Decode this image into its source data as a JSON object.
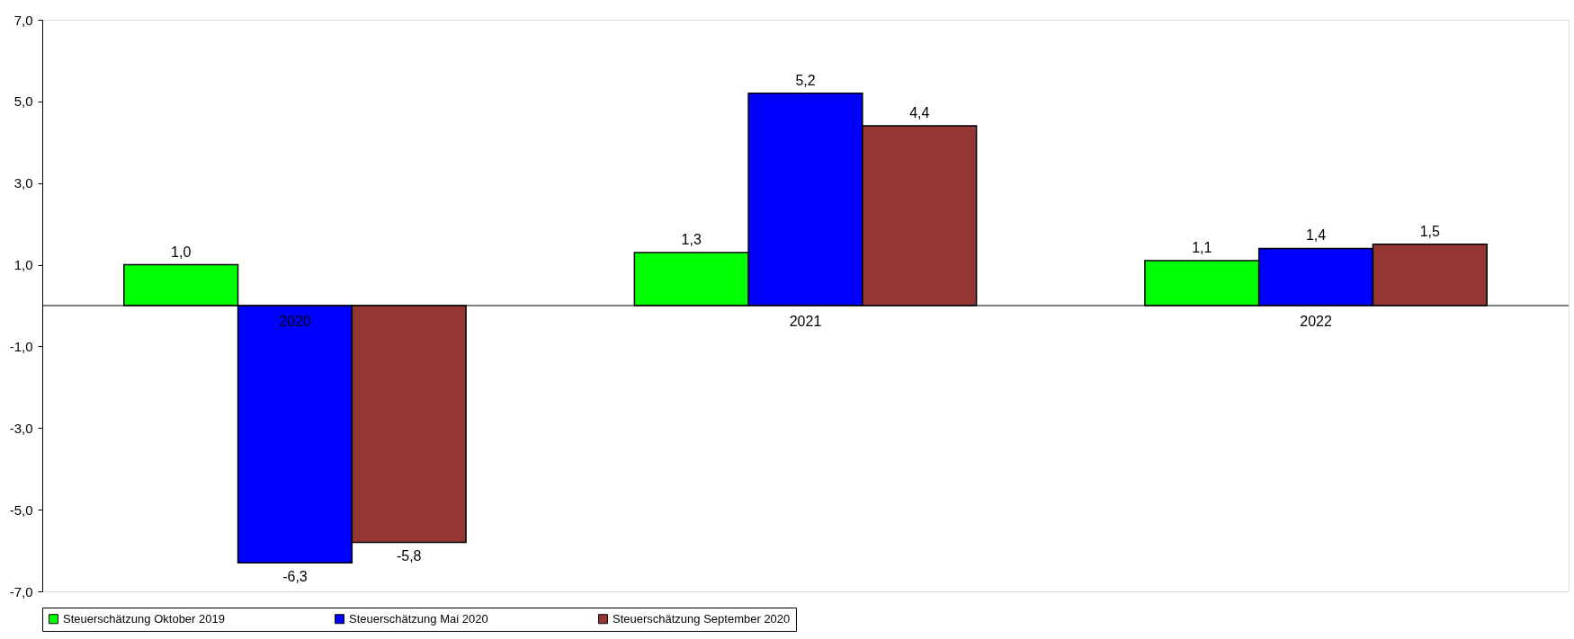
{
  "chart_data": {
    "type": "bar",
    "categories": [
      "2020",
      "2021",
      "2022"
    ],
    "series": [
      {
        "name": "Steuerschätzung Oktober 2019",
        "color": "#00ff00",
        "values": [
          1.0,
          1.3,
          1.1
        ],
        "value_labels": [
          "1,0",
          "1,3",
          "1,1"
        ]
      },
      {
        "name": "Steuerschätzung Mai 2020",
        "color": "#0000ff",
        "values": [
          -6.3,
          5.2,
          1.4
        ],
        "value_labels": [
          "-6,3",
          "5,2",
          "1,4"
        ]
      },
      {
        "name": "Steuerschätzung September 2020",
        "color": "#943634",
        "values": [
          -5.8,
          4.4,
          1.5
        ],
        "value_labels": [
          "-5,8",
          "4,4",
          "1,5"
        ]
      }
    ],
    "ylim": [
      -7,
      7
    ],
    "yticks": [
      {
        "value": -7,
        "label": "-7,0"
      },
      {
        "value": -5,
        "label": "-5,0"
      },
      {
        "value": -3,
        "label": "-3,0"
      },
      {
        "value": -1,
        "label": "-1,0"
      },
      {
        "value": 1,
        "label": "1,0"
      },
      {
        "value": 3,
        "label": "3,0"
      },
      {
        "value": 5,
        "label": "5,0"
      },
      {
        "value": 7,
        "label": "7,0"
      }
    ],
    "grid": false,
    "legend": "bottom"
  }
}
